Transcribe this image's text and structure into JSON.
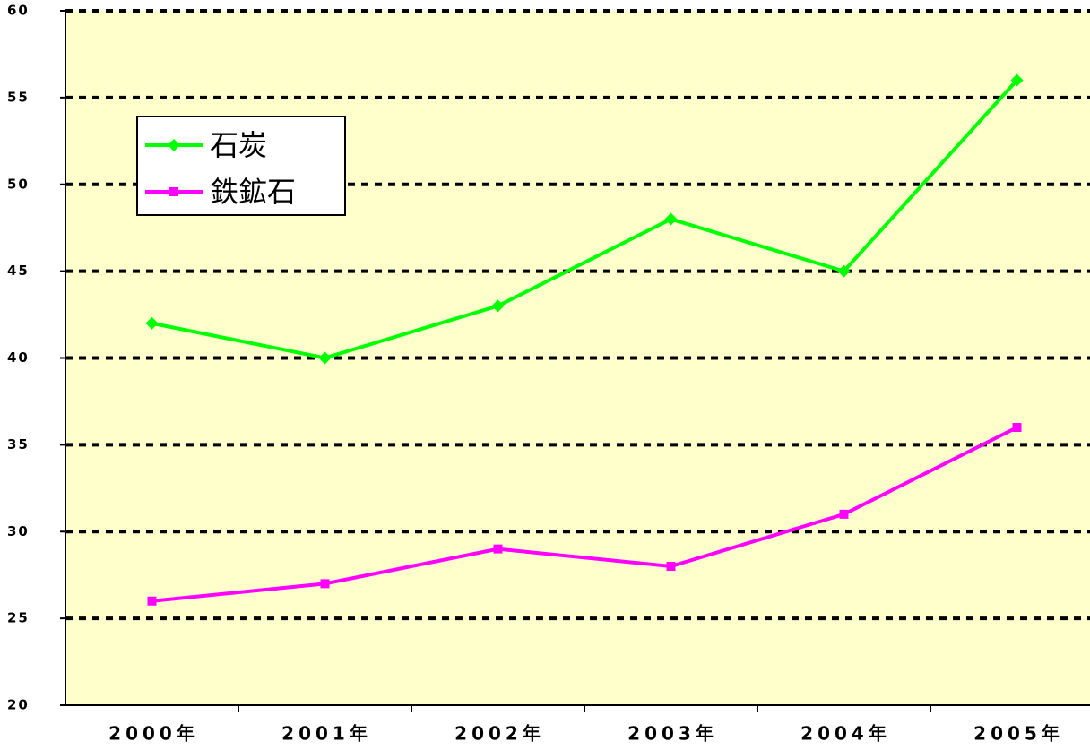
{
  "chart_data": {
    "type": "line",
    "categories": [
      "2000年",
      "2001年",
      "2002年",
      "2003年",
      "2004年",
      "2005年"
    ],
    "series": [
      {
        "name": "石炭",
        "color": "#00ff00",
        "marker": "diamond",
        "values": [
          42,
          40,
          43,
          48,
          45,
          56
        ]
      },
      {
        "name": "鉄鉱石",
        "color": "#ff00ff",
        "marker": "square",
        "values": [
          26,
          27,
          29,
          28,
          31,
          36
        ]
      }
    ],
    "ylim": [
      20,
      60
    ],
    "yticks": [
      20,
      25,
      30,
      35,
      40,
      45,
      50,
      55,
      60
    ],
    "grid": true,
    "background": "#ffffcc",
    "legend": "upper left"
  }
}
